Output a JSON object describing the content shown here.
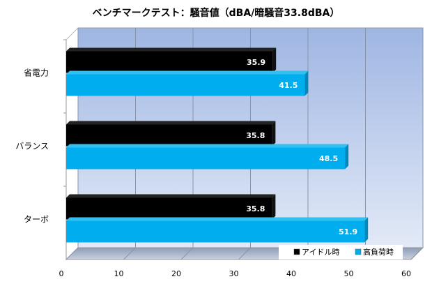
{
  "chart_data": {
    "type": "bar",
    "orientation": "horizontal",
    "title": "ベンチマークテスト：騒音値（dBA/暗騒音33.8dBA）",
    "categories": [
      "省電力",
      "バランス",
      "ターボ"
    ],
    "series": [
      {
        "name": "アイドル時",
        "values": [
          35.9,
          35.8,
          35.8
        ],
        "color": "#000000"
      },
      {
        "name": "高負荷時",
        "values": [
          41.5,
          48.5,
          51.9
        ],
        "color": "#00aeef"
      }
    ],
    "xlim": [
      0,
      60
    ],
    "xticks": [
      "0",
      "10",
      "20",
      "30",
      "40",
      "50",
      "60"
    ],
    "xlabel": "",
    "ylabel": "",
    "grid": true,
    "legend": "bottom-right"
  }
}
